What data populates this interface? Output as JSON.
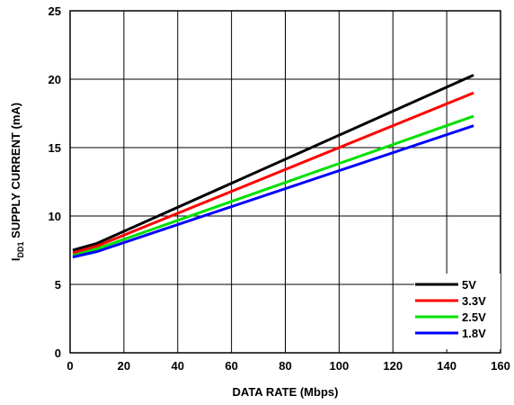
{
  "chart_data": {
    "type": "line",
    "title": "",
    "xlabel": "DATA RATE (Mbps)",
    "ylabel_main": "I",
    "ylabel_sub": "DD1",
    "ylabel_rest": " SUPPLY CURRENT (mA)",
    "xlim": [
      0,
      160
    ],
    "ylim": [
      0,
      25
    ],
    "x_ticks": [
      0,
      20,
      40,
      60,
      80,
      100,
      120,
      140,
      160
    ],
    "y_ticks": [
      0,
      5,
      10,
      15,
      20,
      25
    ],
    "grid": true,
    "legend_position": "bottom-right",
    "series": [
      {
        "name": "5V",
        "color": "#000000",
        "x": [
          1,
          10,
          150
        ],
        "y": [
          7.5,
          8.0,
          20.3
        ]
      },
      {
        "name": "3.3V",
        "color": "#ff0000",
        "x": [
          1,
          10,
          150
        ],
        "y": [
          7.3,
          7.8,
          19.0
        ]
      },
      {
        "name": "2.5V",
        "color": "#00e000",
        "x": [
          1,
          10,
          150
        ],
        "y": [
          7.1,
          7.6,
          17.3
        ]
      },
      {
        "name": "1.8V",
        "color": "#0000ff",
        "x": [
          1,
          10,
          150
        ],
        "y": [
          7.0,
          7.4,
          16.6
        ]
      }
    ]
  }
}
